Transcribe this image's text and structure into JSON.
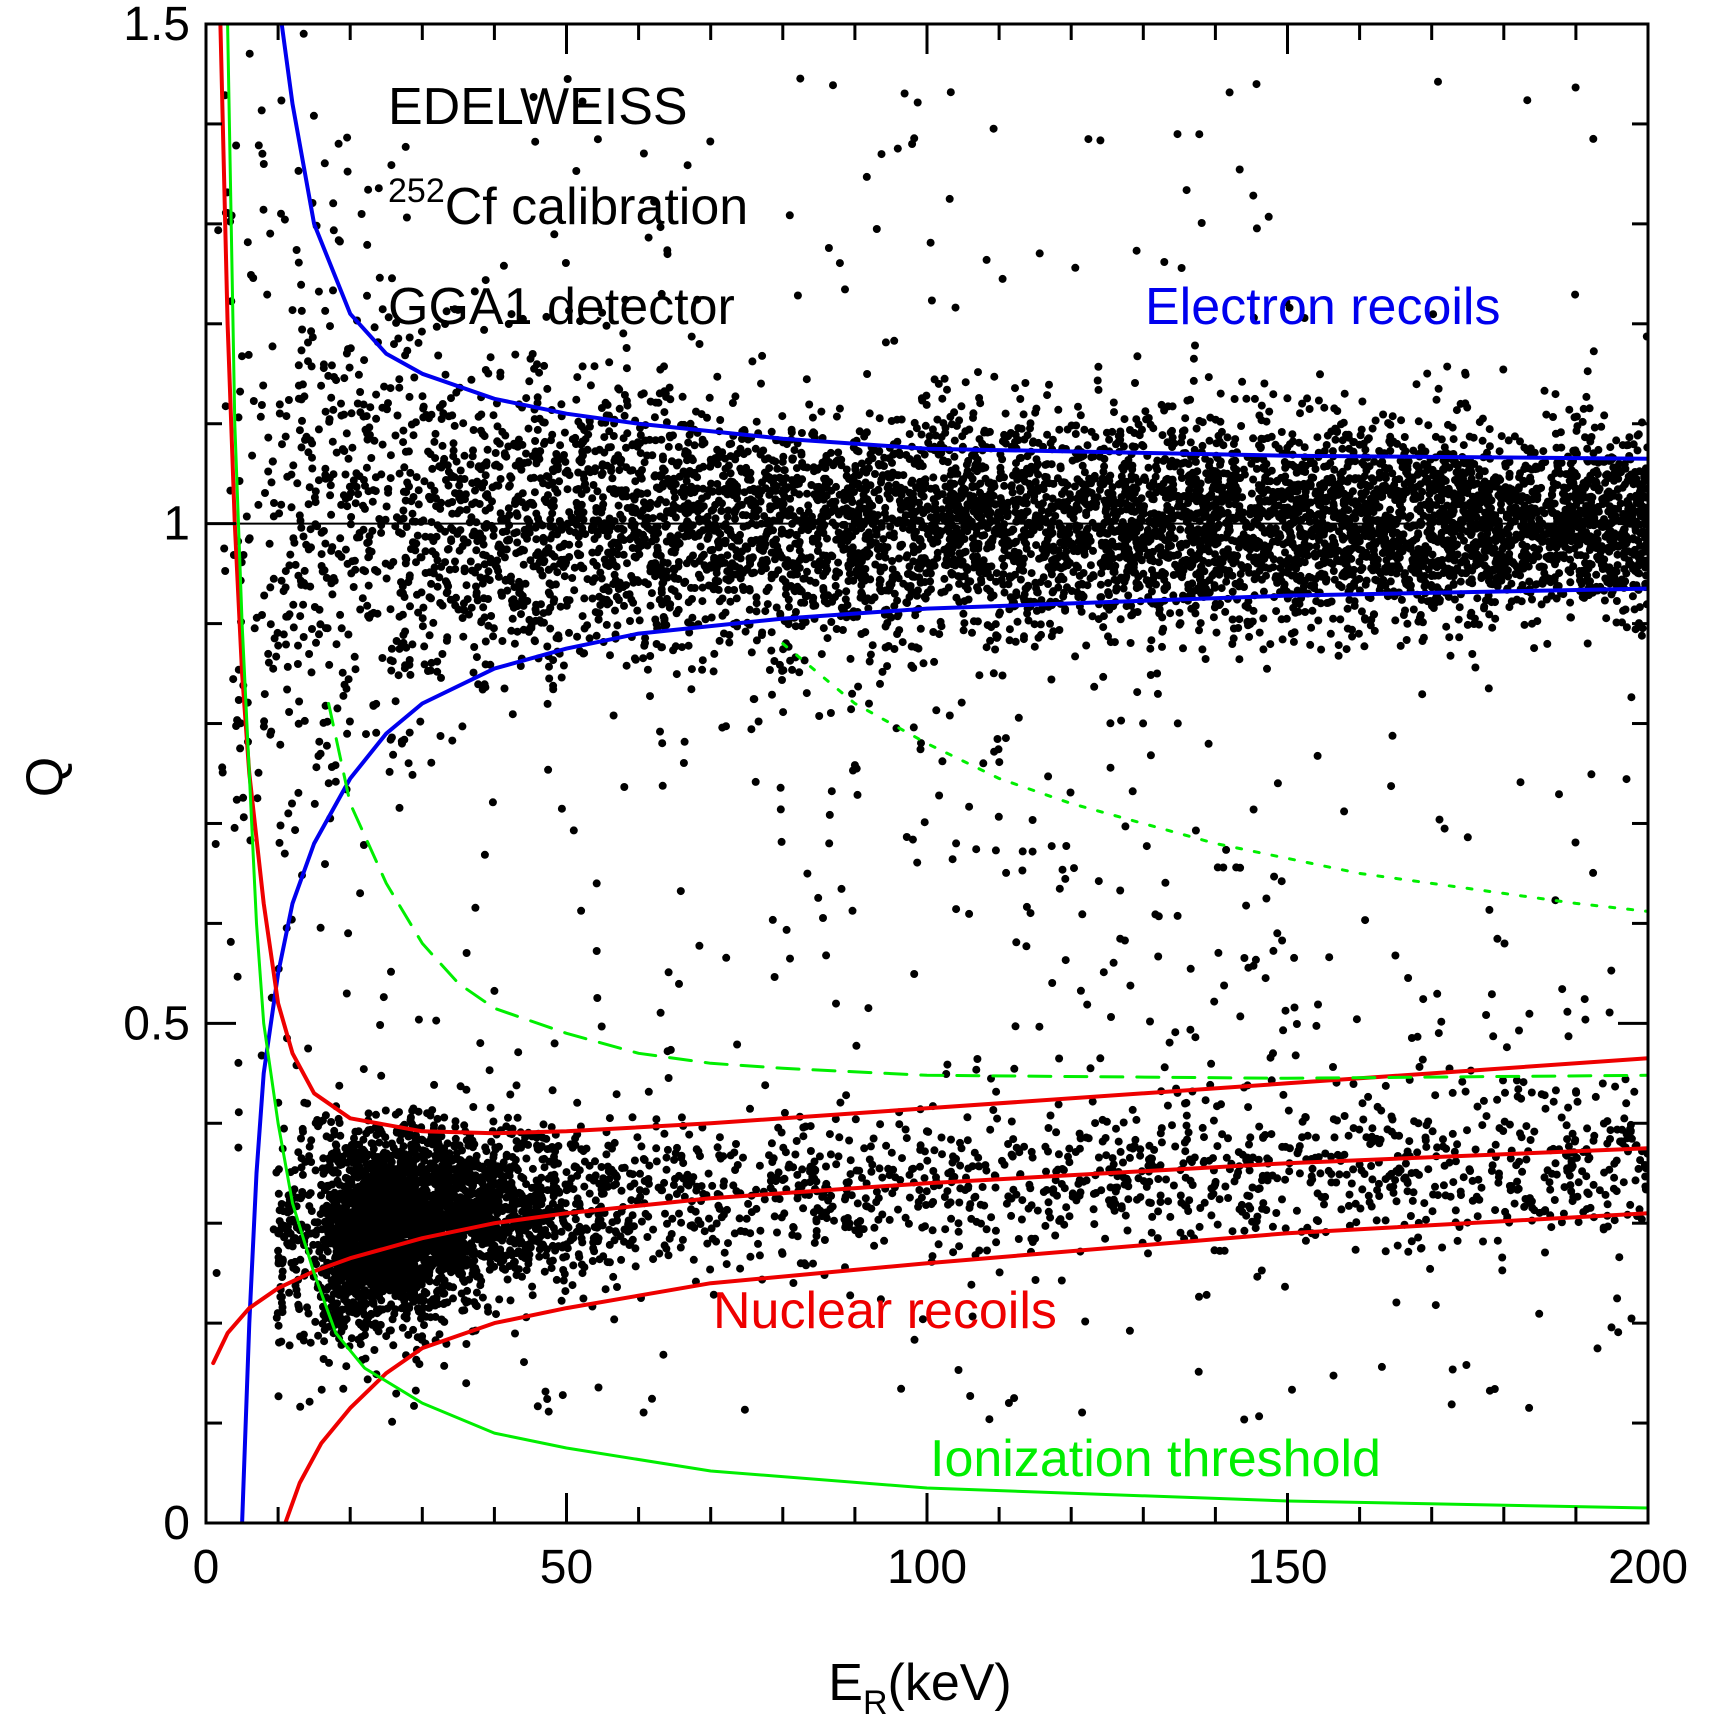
{
  "chart_data": {
    "type": "scatter",
    "xlabel": "E",
    "xlabel_subscript": "R",
    "xlabel_suffix": "(keV)",
    "ylabel": "Q",
    "xlim": [
      0,
      200
    ],
    "ylim": [
      0,
      1.5
    ],
    "x_ticks": [
      {
        "value": 0,
        "label": "0"
      },
      {
        "value": 50,
        "label": "50"
      },
      {
        "value": 100,
        "label": "100"
      },
      {
        "value": 150,
        "label": "150"
      },
      {
        "value": 200,
        "label": "200"
      }
    ],
    "y_ticks": [
      {
        "value": 0,
        "label": "0"
      },
      {
        "value": 0.5,
        "label": "0.5"
      },
      {
        "value": 1,
        "label": "1"
      },
      {
        "value": 1.5,
        "label": "1.5"
      }
    ],
    "x_minor_step": 10,
    "y_minor_step": 0.1,
    "reference_line": {
      "y": 1,
      "color": "#000000"
    },
    "annotations": {
      "experiment": "EDELWEISS",
      "calibration_isotope": "252",
      "calibration_text": "Cf calibration",
      "detector": "GGA1 detector",
      "electron_label": "Electron recoils",
      "nuclear_label": "Nuclear recoils",
      "threshold_label": "Ionization threshold"
    },
    "colors": {
      "electron": "#0000ee",
      "nuclear": "#ee0000",
      "threshold": "#00ee00",
      "points": "#000000"
    },
    "series": [
      {
        "kind": "scatter",
        "color": "#000000",
        "populations": [
          {
            "group": "electron_band",
            "count": 6500,
            "x_range": [
              2,
              200
            ],
            "center_q": 1.0,
            "sigma_q_at_high_E": 0.035
          },
          {
            "group": "nuclear_band",
            "count": 4200,
            "x_range": [
              8,
              200
            ],
            "center_q_at_20keV": 0.3,
            "center_q_at_200keV": 0.4
          },
          {
            "group": "inelastic_band",
            "count": 260,
            "x_range": [
              15,
              200
            ]
          },
          {
            "group": "scattered",
            "count": 500,
            "x_range": [
              1,
              200
            ]
          }
        ]
      },
      {
        "kind": "line",
        "group": "electron",
        "style": "solid",
        "color": "#0000ee",
        "points": [
          [
            10.5,
            1.5
          ],
          [
            12,
            1.42
          ],
          [
            15,
            1.3
          ],
          [
            20,
            1.21
          ],
          [
            25,
            1.17
          ],
          [
            30,
            1.15
          ],
          [
            40,
            1.125
          ],
          [
            50,
            1.11
          ],
          [
            60,
            1.1
          ],
          [
            80,
            1.085
          ],
          [
            100,
            1.075
          ],
          [
            150,
            1.068
          ],
          [
            200,
            1.065
          ]
        ]
      },
      {
        "kind": "line",
        "group": "electron",
        "style": "solid",
        "color": "#0000ee",
        "points": [
          [
            5,
            0
          ],
          [
            6,
            0.2
          ],
          [
            7,
            0.35
          ],
          [
            8,
            0.45
          ],
          [
            10,
            0.55
          ],
          [
            12,
            0.62
          ],
          [
            15,
            0.68
          ],
          [
            20,
            0.745
          ],
          [
            25,
            0.79
          ],
          [
            30,
            0.82
          ],
          [
            40,
            0.855
          ],
          [
            50,
            0.875
          ],
          [
            60,
            0.89
          ],
          [
            80,
            0.905
          ],
          [
            100,
            0.915
          ],
          [
            150,
            0.928
          ],
          [
            200,
            0.935
          ]
        ]
      },
      {
        "kind": "line",
        "group": "nuclear",
        "style": "solid",
        "color": "#ee0000",
        "points": [
          [
            2,
            1.5
          ],
          [
            3,
            1.2
          ],
          [
            4,
            1.0
          ],
          [
            5,
            0.85
          ],
          [
            6,
            0.75
          ],
          [
            8,
            0.62
          ],
          [
            10,
            0.52
          ],
          [
            12,
            0.47
          ],
          [
            15,
            0.43
          ],
          [
            20,
            0.405
          ],
          [
            30,
            0.392
          ],
          [
            40,
            0.39
          ],
          [
            50,
            0.392
          ],
          [
            70,
            0.4
          ],
          [
            100,
            0.415
          ],
          [
            150,
            0.44
          ],
          [
            200,
            0.465
          ]
        ]
      },
      {
        "kind": "line",
        "group": "nuclear",
        "style": "solid",
        "color": "#ee0000",
        "points": [
          [
            1,
            0.16
          ],
          [
            3,
            0.19
          ],
          [
            6,
            0.215
          ],
          [
            10,
            0.235
          ],
          [
            15,
            0.252
          ],
          [
            20,
            0.265
          ],
          [
            30,
            0.285
          ],
          [
            40,
            0.3
          ],
          [
            50,
            0.31
          ],
          [
            70,
            0.325
          ],
          [
            100,
            0.34
          ],
          [
            150,
            0.36
          ],
          [
            200,
            0.375
          ]
        ]
      },
      {
        "kind": "line",
        "group": "nuclear",
        "style": "solid",
        "color": "#ee0000",
        "points": [
          [
            11,
            0
          ],
          [
            13,
            0.04
          ],
          [
            16,
            0.08
          ],
          [
            20,
            0.115
          ],
          [
            25,
            0.15
          ],
          [
            30,
            0.175
          ],
          [
            40,
            0.2
          ],
          [
            50,
            0.215
          ],
          [
            70,
            0.24
          ],
          [
            100,
            0.26
          ],
          [
            150,
            0.29
          ],
          [
            200,
            0.31
          ]
        ]
      },
      {
        "kind": "line",
        "group": "threshold",
        "style": "solid",
        "color": "#00ee00",
        "points": [
          [
            3,
            1.5
          ],
          [
            4,
            1.1
          ],
          [
            5,
            0.9
          ],
          [
            6,
            0.75
          ],
          [
            7,
            0.6
          ],
          [
            8,
            0.5
          ],
          [
            10,
            0.4
          ],
          [
            12,
            0.32
          ],
          [
            15,
            0.25
          ],
          [
            18,
            0.19
          ],
          [
            22,
            0.155
          ],
          [
            30,
            0.12
          ],
          [
            40,
            0.09
          ],
          [
            50,
            0.075
          ],
          [
            70,
            0.052
          ],
          [
            100,
            0.035
          ],
          [
            150,
            0.022
          ],
          [
            200,
            0.015
          ]
        ]
      },
      {
        "kind": "line",
        "group": "threshold",
        "style": "dashed",
        "color": "#00ee00",
        "points": [
          [
            17,
            0.82
          ],
          [
            20,
            0.72
          ],
          [
            25,
            0.64
          ],
          [
            30,
            0.58
          ],
          [
            35,
            0.54
          ],
          [
            40,
            0.515
          ],
          [
            50,
            0.49
          ],
          [
            60,
            0.47
          ],
          [
            70,
            0.46
          ],
          [
            80,
            0.455
          ],
          [
            100,
            0.448
          ],
          [
            150,
            0.445
          ],
          [
            200,
            0.448
          ]
        ]
      },
      {
        "kind": "line",
        "group": "threshold",
        "style": "dotted",
        "color": "#00ee00",
        "points": [
          [
            80,
            0.88
          ],
          [
            90,
            0.82
          ],
          [
            100,
            0.78
          ],
          [
            110,
            0.745
          ],
          [
            120,
            0.72
          ],
          [
            130,
            0.7
          ],
          [
            140,
            0.68
          ],
          [
            150,
            0.665
          ],
          [
            160,
            0.65
          ],
          [
            170,
            0.64
          ],
          [
            180,
            0.63
          ],
          [
            190,
            0.62
          ],
          [
            200,
            0.612
          ]
        ]
      }
    ]
  }
}
